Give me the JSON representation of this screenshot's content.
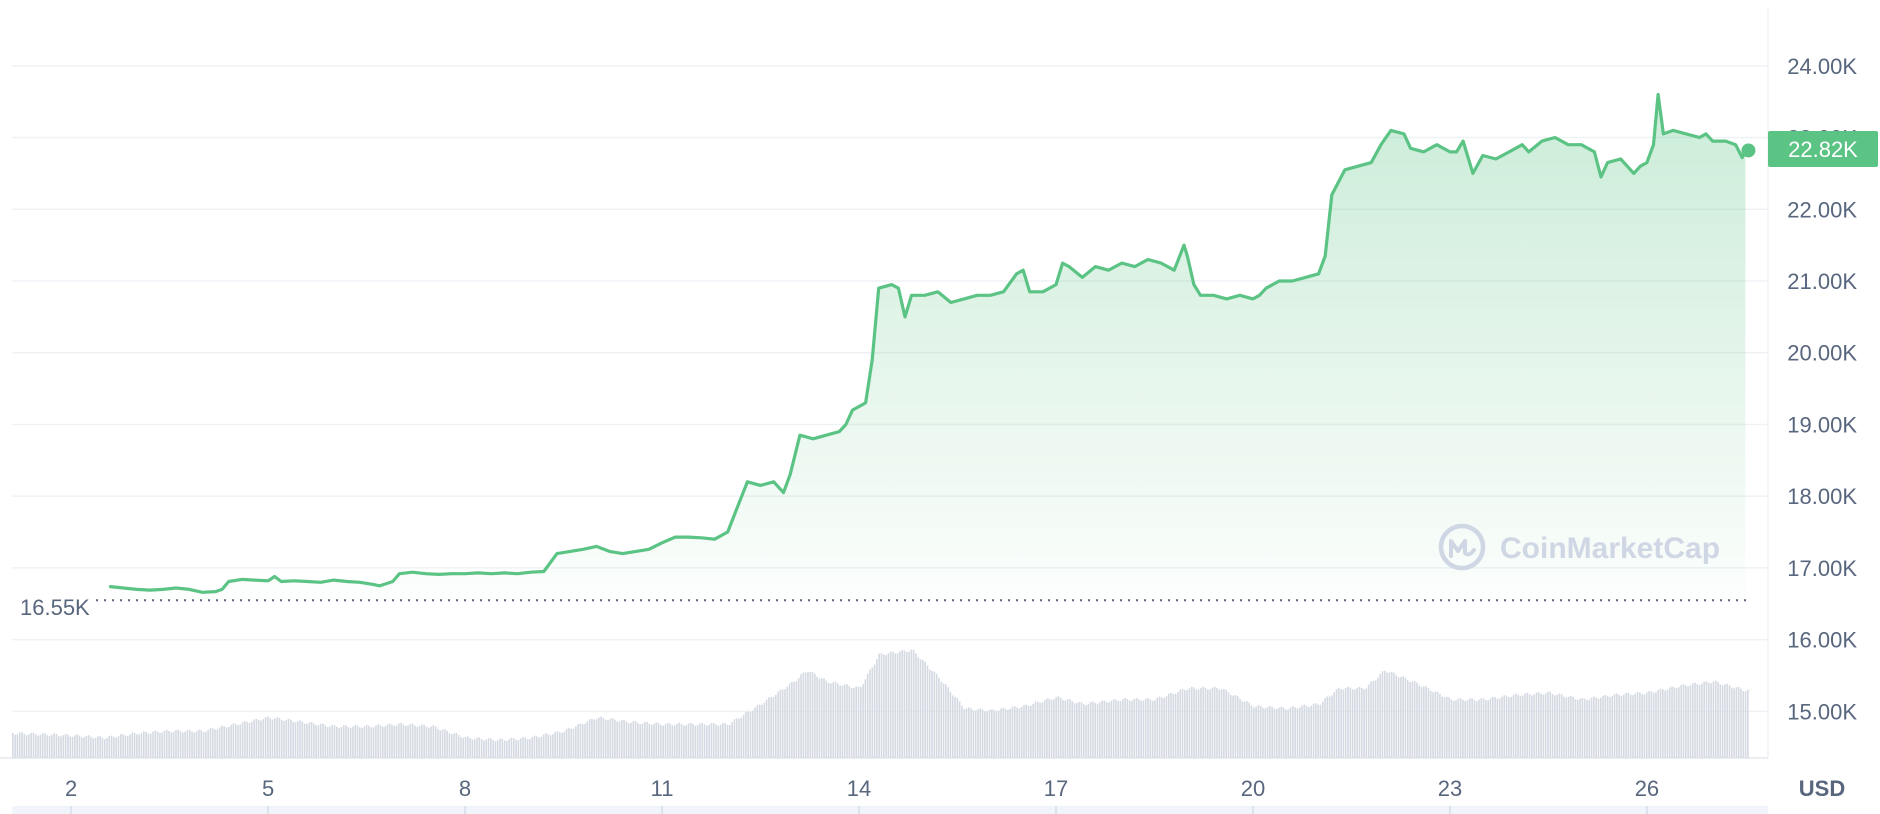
{
  "chart_data": {
    "type": "area",
    "currency": "USD",
    "y_ticks": [
      15000,
      16000,
      17000,
      18000,
      19000,
      20000,
      21000,
      22000,
      23000,
      24000
    ],
    "y_tick_labels": [
      "15.00K",
      "16.00K",
      "17.00K",
      "18.00K",
      "19.00K",
      "20.00K",
      "21.00K",
      "22.00K",
      "23.00K",
      "24.00K"
    ],
    "x_ticks": [
      2,
      5,
      8,
      11,
      14,
      17,
      20,
      23,
      26
    ],
    "x_tick_labels": [
      "2",
      "5",
      "8",
      "11",
      "14",
      "17",
      "20",
      "23",
      "26"
    ],
    "ylim": [
      14350,
      24750
    ],
    "xlim": [
      1.1,
      27.6
    ],
    "grid": true,
    "reference_line": {
      "value": 16550,
      "label": "16.55K"
    },
    "current_price": {
      "value": 22820,
      "label": "22.82K"
    },
    "line_color": "#5bc384",
    "series": [
      {
        "values": [
          [
            2.6,
            16740
          ],
          [
            2.8,
            16720
          ],
          [
            3.0,
            16700
          ],
          [
            3.2,
            16690
          ],
          [
            3.4,
            16700
          ],
          [
            3.6,
            16720
          ],
          [
            3.8,
            16700
          ],
          [
            4.0,
            16660
          ],
          [
            4.2,
            16670
          ],
          [
            4.3,
            16700
          ],
          [
            4.4,
            16810
          ],
          [
            4.6,
            16840
          ],
          [
            4.8,
            16830
          ],
          [
            5.0,
            16820
          ],
          [
            5.1,
            16880
          ],
          [
            5.2,
            16810
          ],
          [
            5.4,
            16820
          ],
          [
            5.6,
            16810
          ],
          [
            5.8,
            16800
          ],
          [
            6.0,
            16830
          ],
          [
            6.2,
            16810
          ],
          [
            6.4,
            16800
          ],
          [
            6.6,
            16770
          ],
          [
            6.7,
            16750
          ],
          [
            6.9,
            16810
          ],
          [
            7.0,
            16920
          ],
          [
            7.2,
            16940
          ],
          [
            7.4,
            16920
          ],
          [
            7.6,
            16910
          ],
          [
            7.8,
            16920
          ],
          [
            8.0,
            16920
          ],
          [
            8.2,
            16930
          ],
          [
            8.4,
            16920
          ],
          [
            8.6,
            16930
          ],
          [
            8.8,
            16920
          ],
          [
            9.0,
            16940
          ],
          [
            9.2,
            16950
          ],
          [
            9.4,
            17200
          ],
          [
            9.6,
            17230
          ],
          [
            9.8,
            17260
          ],
          [
            10.0,
            17300
          ],
          [
            10.2,
            17230
          ],
          [
            10.4,
            17200
          ],
          [
            10.6,
            17230
          ],
          [
            10.8,
            17260
          ],
          [
            11.0,
            17350
          ],
          [
            11.2,
            17430
          ],
          [
            11.4,
            17430
          ],
          [
            11.6,
            17420
          ],
          [
            11.8,
            17400
          ],
          [
            12.0,
            17500
          ],
          [
            12.15,
            17850
          ],
          [
            12.3,
            18200
          ],
          [
            12.5,
            18150
          ],
          [
            12.7,
            18200
          ],
          [
            12.85,
            18050
          ],
          [
            12.95,
            18300
          ],
          [
            13.1,
            18850
          ],
          [
            13.3,
            18800
          ],
          [
            13.5,
            18850
          ],
          [
            13.7,
            18900
          ],
          [
            13.8,
            19000
          ],
          [
            13.9,
            19200
          ],
          [
            14.1,
            19300
          ],
          [
            14.2,
            19900
          ],
          [
            14.3,
            20900
          ],
          [
            14.5,
            20950
          ],
          [
            14.6,
            20900
          ],
          [
            14.7,
            20500
          ],
          [
            14.8,
            20800
          ],
          [
            15.0,
            20800
          ],
          [
            15.2,
            20850
          ],
          [
            15.4,
            20700
          ],
          [
            15.6,
            20750
          ],
          [
            15.8,
            20800
          ],
          [
            16.0,
            20800
          ],
          [
            16.2,
            20850
          ],
          [
            16.4,
            21100
          ],
          [
            16.5,
            21150
          ],
          [
            16.6,
            20850
          ],
          [
            16.8,
            20850
          ],
          [
            17.0,
            20950
          ],
          [
            17.1,
            21250
          ],
          [
            17.2,
            21200
          ],
          [
            17.4,
            21050
          ],
          [
            17.6,
            21200
          ],
          [
            17.8,
            21150
          ],
          [
            18.0,
            21250
          ],
          [
            18.2,
            21200
          ],
          [
            18.4,
            21300
          ],
          [
            18.6,
            21250
          ],
          [
            18.8,
            21150
          ],
          [
            18.95,
            21500
          ],
          [
            19.0,
            21350
          ],
          [
            19.1,
            20950
          ],
          [
            19.2,
            20800
          ],
          [
            19.4,
            20800
          ],
          [
            19.6,
            20750
          ],
          [
            19.8,
            20800
          ],
          [
            20.0,
            20750
          ],
          [
            20.1,
            20800
          ],
          [
            20.2,
            20900
          ],
          [
            20.4,
            21000
          ],
          [
            20.6,
            21000
          ],
          [
            20.8,
            21050
          ],
          [
            21.0,
            21100
          ],
          [
            21.1,
            21350
          ],
          [
            21.2,
            22200
          ],
          [
            21.4,
            22550
          ],
          [
            21.6,
            22600
          ],
          [
            21.8,
            22650
          ],
          [
            21.95,
            22900
          ],
          [
            22.1,
            23100
          ],
          [
            22.3,
            23050
          ],
          [
            22.4,
            22850
          ],
          [
            22.6,
            22800
          ],
          [
            22.8,
            22900
          ],
          [
            23.0,
            22800
          ],
          [
            23.1,
            22800
          ],
          [
            23.2,
            22950
          ],
          [
            23.35,
            22500
          ],
          [
            23.5,
            22750
          ],
          [
            23.7,
            22700
          ],
          [
            23.9,
            22800
          ],
          [
            24.1,
            22900
          ],
          [
            24.2,
            22800
          ],
          [
            24.4,
            22950
          ],
          [
            24.6,
            23000
          ],
          [
            24.8,
            22900
          ],
          [
            25.0,
            22900
          ],
          [
            25.2,
            22800
          ],
          [
            25.3,
            22450
          ],
          [
            25.4,
            22650
          ],
          [
            25.6,
            22700
          ],
          [
            25.8,
            22500
          ],
          [
            25.9,
            22600
          ],
          [
            26.0,
            22650
          ],
          [
            26.1,
            22900
          ],
          [
            26.17,
            23600
          ],
          [
            26.25,
            23050
          ],
          [
            26.4,
            23100
          ],
          [
            26.6,
            23050
          ],
          [
            26.8,
            23000
          ],
          [
            26.9,
            23050
          ],
          [
            27.0,
            22950
          ],
          [
            27.2,
            22950
          ],
          [
            27.35,
            22900
          ],
          [
            27.45,
            22720
          ],
          [
            27.5,
            22820
          ]
        ]
      }
    ],
    "volume_profile": [
      [
        1.1,
        0.55
      ],
      [
        2.0,
        0.5
      ],
      [
        2.5,
        0.45
      ],
      [
        3.0,
        0.55
      ],
      [
        3.5,
        0.6
      ],
      [
        4.0,
        0.6
      ],
      [
        4.5,
        0.75
      ],
      [
        5.0,
        0.9
      ],
      [
        5.5,
        0.8
      ],
      [
        6.0,
        0.7
      ],
      [
        6.5,
        0.7
      ],
      [
        7.0,
        0.75
      ],
      [
        7.5,
        0.7
      ],
      [
        8.0,
        0.45
      ],
      [
        8.5,
        0.4
      ],
      [
        9.0,
        0.45
      ],
      [
        9.5,
        0.6
      ],
      [
        10.0,
        0.9
      ],
      [
        10.5,
        0.8
      ],
      [
        11.0,
        0.75
      ],
      [
        11.5,
        0.75
      ],
      [
        12.0,
        0.75
      ],
      [
        12.5,
        1.2
      ],
      [
        13.0,
        1.7
      ],
      [
        13.2,
        1.95
      ],
      [
        13.5,
        1.7
      ],
      [
        14.0,
        1.55
      ],
      [
        14.3,
        2.3
      ],
      [
        14.8,
        2.4
      ],
      [
        15.2,
        1.8
      ],
      [
        15.6,
        1.1
      ],
      [
        16.0,
        1.05
      ],
      [
        16.5,
        1.15
      ],
      [
        17.0,
        1.35
      ],
      [
        17.4,
        1.2
      ],
      [
        18.0,
        1.3
      ],
      [
        18.5,
        1.3
      ],
      [
        19.0,
        1.55
      ],
      [
        19.5,
        1.55
      ],
      [
        20.0,
        1.15
      ],
      [
        20.5,
        1.1
      ],
      [
        21.0,
        1.2
      ],
      [
        21.3,
        1.55
      ],
      [
        21.7,
        1.55
      ],
      [
        22.0,
        1.95
      ],
      [
        22.5,
        1.65
      ],
      [
        23.0,
        1.3
      ],
      [
        23.5,
        1.3
      ],
      [
        24.0,
        1.4
      ],
      [
        24.5,
        1.45
      ],
      [
        25.0,
        1.3
      ],
      [
        25.5,
        1.4
      ],
      [
        26.0,
        1.45
      ],
      [
        26.5,
        1.6
      ],
      [
        27.0,
        1.7
      ],
      [
        27.5,
        1.5
      ]
    ]
  },
  "watermark": {
    "text": "CoinMarketCap",
    "icon": "coinmarketcap-logo-icon"
  }
}
